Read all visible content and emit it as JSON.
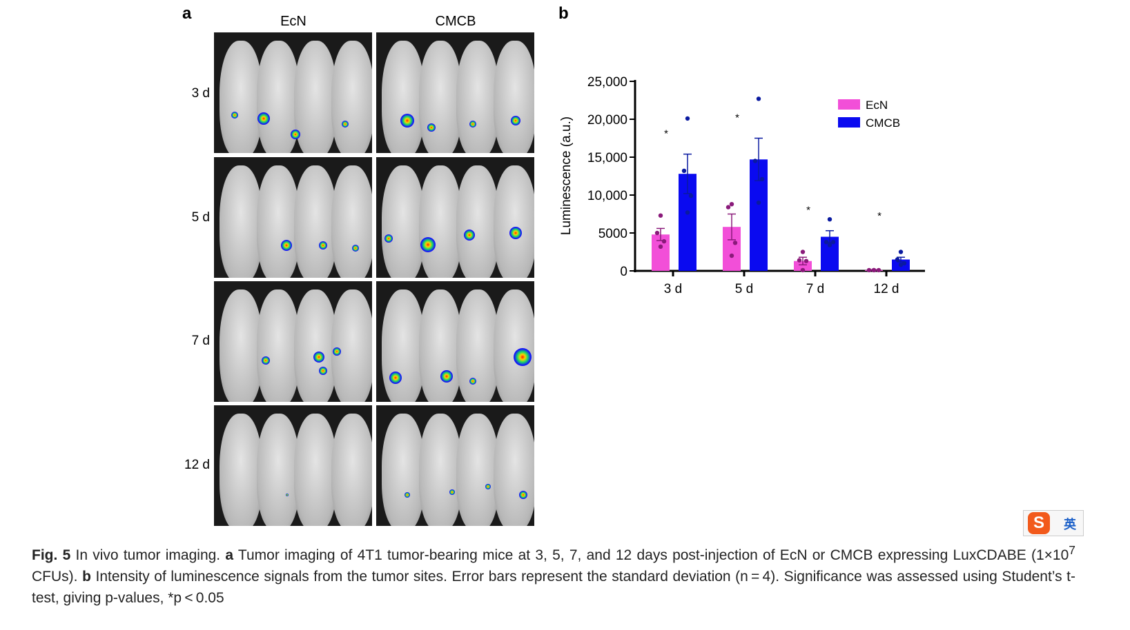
{
  "panel_a": {
    "label": "a",
    "columns": [
      "EcN",
      "CMCB"
    ],
    "rows": [
      "3 d",
      "5 d",
      "7 d",
      "12 d"
    ]
  },
  "panel_b": {
    "label": "b"
  },
  "chart_data": {
    "type": "bar",
    "ylabel": "Luminescence (a.u.)",
    "ylim": [
      0,
      25000
    ],
    "yticks": [
      "0",
      "5000",
      "10,000",
      "15,000",
      "20,000",
      "25,000"
    ],
    "ytick_values": [
      0,
      5000,
      10000,
      15000,
      20000,
      25000
    ],
    "categories": [
      "3 d",
      "5 d",
      "7 d",
      "12 d"
    ],
    "legend": {
      "placement": "top-right"
    },
    "series": [
      {
        "name": "EcN",
        "color": "#f24fd8",
        "point_color": "#8a1a7a",
        "values": [
          4800,
          5800,
          1300,
          100
        ],
        "errors": [
          800,
          1700,
          500,
          50
        ],
        "points": [
          [
            7300,
            5000,
            3900,
            3200
          ],
          [
            8800,
            8400,
            3700,
            2000
          ],
          [
            2500,
            1400,
            1300,
            100
          ],
          [
            100,
            100,
            100,
            100
          ]
        ]
      },
      {
        "name": "CMCB",
        "color": "#0a0af0",
        "point_color": "#0a1aa0",
        "values": [
          12800,
          14700,
          4500,
          1500
        ],
        "errors": [
          2600,
          2800,
          800,
          300
        ],
        "points": [
          [
            20100,
            13200,
            9900,
            7700
          ],
          [
            22700,
            14500,
            12100,
            9000
          ],
          [
            6800,
            3800,
            3800,
            3400
          ],
          [
            2500,
            1500,
            1000,
            800
          ]
        ]
      }
    ],
    "significance": [
      "*",
      "*",
      "*",
      "*"
    ]
  },
  "caption": {
    "fig": "Fig. 5",
    "title": " In vivo tumor imaging. ",
    "a": "a",
    "a_text": " Tumor imaging of 4T1 tumor-bearing mice at 3, 5, 7, and 12 days post-injection of EcN or CMCB expressing LuxCDABE (1×10",
    "sup": "7",
    "a_text2": " CFUs). ",
    "b": "b",
    "b_text": " Intensity of luminescence signals from the tumor sites. Error bars represent the standard deviation (n = 4). Significance was assessed using Student’s t-test, giving p-values, *p < 0.05"
  },
  "ime": {
    "label": "英"
  }
}
